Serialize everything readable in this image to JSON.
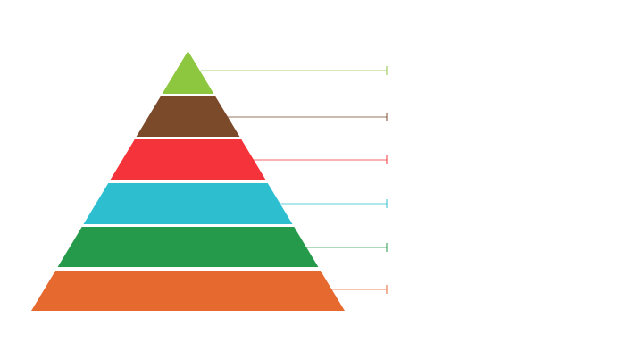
{
  "diagram": {
    "type": "pyramid",
    "levels": [
      {
        "color": "#8DC63F"
      },
      {
        "color": "#7B4A2A"
      },
      {
        "color": "#F4333A"
      },
      {
        "color": "#2DBFD0"
      },
      {
        "color": "#259A4B"
      },
      {
        "color": "#E66930"
      }
    ],
    "labels": [
      "",
      "",
      "",
      "",
      "",
      ""
    ]
  }
}
